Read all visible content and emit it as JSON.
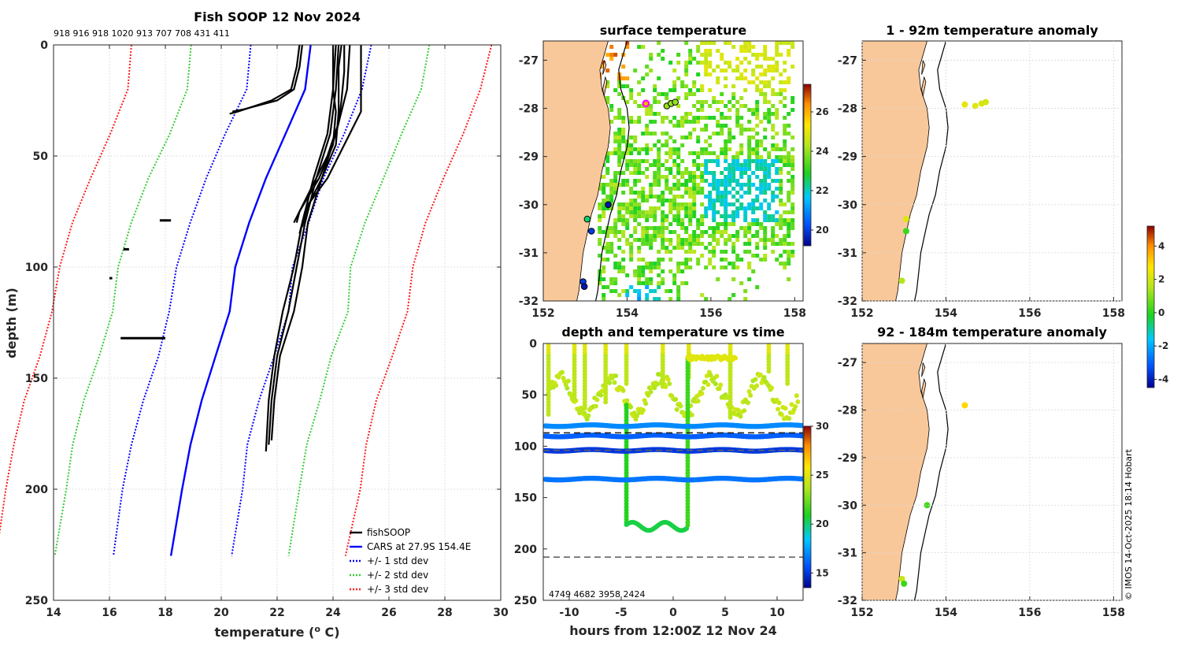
{
  "chart_data": [
    {
      "type": "line",
      "title": "Fish SOOP 12 Nov 2024",
      "top_annotation": "918 916 918 1020 913 707 708 431 411",
      "xlabel": "temperature (°C)",
      "ylabel": "depth (m)",
      "xlim": [
        14,
        30
      ],
      "ylim": [
        250,
        0
      ],
      "xticks": [
        "14",
        "16",
        "18",
        "20",
        "22",
        "24",
        "26",
        "28",
        "30"
      ],
      "yticks": [
        "0",
        "50",
        "100",
        "150",
        "200",
        "250"
      ],
      "legend": [
        "fishSOOP",
        "CARS at 27.9S 154.4E",
        "+/- 1 std dev",
        "+/- 2 std dev",
        "+/- 3 std dev"
      ],
      "legend_position": "bottom-right",
      "cars_mean": {
        "depth": [
          0,
          20,
          40,
          60,
          80,
          100,
          120,
          140,
          160,
          180,
          200,
          230
        ],
        "temp": [
          23.2,
          23.0,
          22.3,
          21.6,
          21.0,
          20.5,
          20.3,
          19.8,
          19.3,
          18.9,
          18.6,
          18.2
        ]
      },
      "std_offsets": [
        2.1,
        4.2,
        6.3
      ],
      "fishsoop_profiles": [
        {
          "depth": [
            0,
            10,
            20,
            30,
            45,
            60,
            75,
            80
          ],
          "temp": [
            24.0,
            24.0,
            24.0,
            24.1,
            24.0,
            23.5,
            22.8,
            22.7
          ]
        },
        {
          "depth": [
            0,
            10,
            20,
            30,
            45,
            60,
            75,
            85
          ],
          "temp": [
            24.3,
            24.2,
            24.2,
            24.2,
            24.1,
            23.6,
            23.0,
            22.8
          ]
        },
        {
          "depth": [
            0,
            10,
            20,
            30,
            45,
            60,
            72,
            82
          ],
          "temp": [
            25.0,
            25.0,
            25.0,
            25.0,
            24.4,
            23.8,
            23.1,
            22.9
          ]
        },
        {
          "depth": [
            0,
            12,
            25,
            35,
            50,
            65,
            80
          ],
          "temp": [
            24.4,
            24.4,
            24.3,
            24.2,
            23.8,
            23.2,
            22.6
          ]
        },
        {
          "depth": [
            0,
            20,
            40,
            60,
            80,
            100,
            120,
            140,
            160,
            183
          ],
          "temp": [
            24.1,
            24.0,
            23.8,
            23.3,
            22.9,
            22.6,
            22.2,
            21.9,
            21.7,
            21.6
          ]
        },
        {
          "depth": [
            0,
            20,
            40,
            60,
            80,
            100,
            120,
            140,
            160,
            180
          ],
          "temp": [
            24.2,
            24.1,
            23.9,
            23.4,
            23.0,
            22.7,
            22.4,
            22.0,
            21.8,
            21.7
          ]
        },
        {
          "depth": [
            0,
            20,
            40,
            60,
            80,
            100,
            120,
            140,
            160,
            178
          ],
          "temp": [
            24.6,
            24.5,
            24.1,
            23.6,
            23.1,
            22.9,
            22.6,
            22.1,
            21.9,
            21.8
          ]
        },
        {
          "depth": [
            0,
            10,
            20,
            25,
            30,
            31
          ],
          "temp": [
            22.8,
            22.7,
            22.5,
            21.8,
            20.6,
            20.3
          ]
        },
        {
          "depth": [
            0,
            10,
            20,
            25,
            29,
            30
          ],
          "temp": [
            22.9,
            22.8,
            22.6,
            22.0,
            20.8,
            20.4
          ]
        }
      ],
      "fishsoop_fragments": [
        {
          "temp": [
            17.8,
            18.2
          ],
          "depth": 79
        },
        {
          "temp": [
            16.5,
            16.7
          ],
          "depth": 92
        },
        {
          "temp": [
            16.0,
            16.1
          ],
          "depth": 105
        },
        {
          "temp": [
            16.4,
            18.0
          ],
          "depth": 132
        }
      ]
    },
    {
      "type": "heatmap",
      "title": "surface temperature",
      "xticks": [
        "152",
        "154",
        "156",
        "158"
      ],
      "yticks": [
        "-27",
        "-28",
        "-29",
        "-30",
        "-31",
        "-32"
      ],
      "xlim": [
        152,
        158.2
      ],
      "ylim": [
        -32,
        -26.6
      ],
      "colorbar_ticks": [
        "20",
        "22",
        "24",
        "26"
      ],
      "colorbar_range": [
        19.2,
        27.4
      ],
      "stations": [
        {
          "lon": 154.45,
          "lat": -27.9,
          "temp": 26,
          "highlight": true
        },
        {
          "lon": 154.95,
          "lat": -27.95,
          "temp": 24
        },
        {
          "lon": 155.05,
          "lat": -27.9,
          "temp": 24
        },
        {
          "lon": 155.15,
          "lat": -27.87,
          "temp": 24
        },
        {
          "lon": 153.55,
          "lat": -30.0,
          "temp": 19.5
        },
        {
          "lon": 153.05,
          "lat": -30.3,
          "temp": 22.5
        },
        {
          "lon": 153.15,
          "lat": -30.55,
          "temp": 20
        },
        {
          "lon": 152.95,
          "lat": -31.6,
          "temp": 20
        },
        {
          "lon": 152.98,
          "lat": -31.7,
          "temp": 19.5
        }
      ]
    },
    {
      "type": "scatter",
      "title": "depth and temperature vs time",
      "xlabel": "hours from 12:00Z 12 Nov 24",
      "xticks": [
        "-10",
        "-5",
        "0",
        "5",
        "10"
      ],
      "yticks": [
        "0",
        "50",
        "100",
        "150",
        "200",
        "250"
      ],
      "xlim": [
        -12.5,
        12.5
      ],
      "ylim": [
        250,
        0
      ],
      "colorbar_ticks": [
        "15",
        "20",
        "25",
        "30"
      ],
      "colorbar_range": [
        13.5,
        30
      ],
      "bottom_annotation": "4749  4682 3958 2424",
      "reference_depths": [
        87,
        104,
        208
      ],
      "bands": [
        {
          "depth": 80,
          "temp": 17
        },
        {
          "depth": 90,
          "temp": 16
        },
        {
          "depth": 104,
          "temp": 15
        },
        {
          "depth": 132,
          "temp": 16.5
        }
      ]
    },
    {
      "type": "scatter",
      "title": "1 - 92m temperature anomaly",
      "xticks": [
        "152",
        "154",
        "156",
        "158"
      ],
      "yticks": [
        "-27",
        "-28",
        "-29",
        "-30",
        "-31",
        "-32"
      ],
      "xlim": [
        152,
        158.2
      ],
      "ylim": [
        -32,
        -26.6
      ],
      "points": [
        {
          "lon": 154.45,
          "lat": -27.92,
          "anom": 2.3
        },
        {
          "lon": 154.7,
          "lat": -27.95,
          "anom": 2.2
        },
        {
          "lon": 154.85,
          "lat": -27.9,
          "anom": 2.1
        },
        {
          "lon": 154.95,
          "lat": -27.87,
          "anom": 2.0
        },
        {
          "lon": 153.05,
          "lat": -30.3,
          "anom": 2.2
        },
        {
          "lon": 153.05,
          "lat": -30.55,
          "anom": 0.2
        },
        {
          "lon": 152.95,
          "lat": -31.58,
          "anom": 1.5
        }
      ]
    },
    {
      "type": "scatter",
      "title": "92 - 184m temperature anomaly",
      "xticks": [
        "152",
        "154",
        "156",
        "158"
      ],
      "yticks": [
        "-27",
        "-28",
        "-29",
        "-30",
        "-31",
        "-32"
      ],
      "xlim": [
        152,
        158.2
      ],
      "ylim": [
        -32,
        -26.6
      ],
      "colorbar_ticks": [
        "4",
        "2",
        "0",
        "-2",
        "-4"
      ],
      "colorbar_range": [
        -4.5,
        5.2
      ],
      "points": [
        {
          "lon": 154.45,
          "lat": -27.9,
          "anom": 3.0
        },
        {
          "lon": 153.55,
          "lat": -30.0,
          "anom": 0.3
        },
        {
          "lon": 152.95,
          "lat": -31.55,
          "anom": 1.8
        },
        {
          "lon": 153.0,
          "lat": -31.65,
          "anom": 0.2
        }
      ]
    }
  ],
  "credit": "© IMOS 14-Oct-2025 18:14 Hobart"
}
